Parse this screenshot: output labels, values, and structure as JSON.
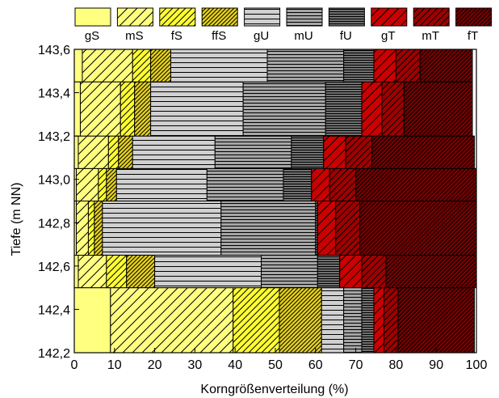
{
  "chart_data": {
    "type": "area",
    "subtype": "stacked-horizontal-step",
    "title": "",
    "xlabel": "Korngrößenverteilung (%)",
    "ylabel": "Tiefe (m NN)",
    "xlim": [
      0,
      100
    ],
    "ylim": [
      142.2,
      143.6
    ],
    "x_ticks": [
      "0",
      "10",
      "20",
      "30",
      "40",
      "50",
      "60",
      "70",
      "80",
      "90",
      "100"
    ],
    "y_ticks": [
      "142,2",
      "142,4",
      "142,6",
      "142,8",
      "143,0",
      "143,2",
      "143,4",
      "143,6"
    ],
    "legend_position": "top",
    "series": [
      {
        "name": "gS",
        "color": "#ffff80",
        "pattern": "none"
      },
      {
        "name": "mS",
        "color": "#ffff80",
        "pattern": "sparse-diagonal"
      },
      {
        "name": "fS",
        "color": "#ffff33",
        "pattern": "diagonal"
      },
      {
        "name": "ffS",
        "color": "#e6d21a",
        "pattern": "dense-diagonal"
      },
      {
        "name": "gU",
        "color": "#d0d0d0",
        "pattern": "sparse-horizontal"
      },
      {
        "name": "mU",
        "color": "#a6a6a6",
        "pattern": "horizontal"
      },
      {
        "name": "fU",
        "color": "#707070",
        "pattern": "dense-horizontal"
      },
      {
        "name": "gT",
        "color": "#cc0000",
        "pattern": "sparse-diagonal"
      },
      {
        "name": "mT",
        "color": "#a00000",
        "pattern": "diagonal"
      },
      {
        "name": "fT",
        "color": "#780000",
        "pattern": "dense-diagonal"
      }
    ],
    "layers": [
      {
        "from": 142.2,
        "to": 142.5,
        "cumulative": [
          9,
          39.5,
          51,
          61.5,
          67,
          71.5,
          74.5,
          77,
          80.5,
          99.5
        ]
      },
      {
        "from": 142.5,
        "to": 142.65,
        "cumulative": [
          1,
          8,
          13,
          20,
          46.5,
          60.5,
          66,
          71.5,
          77.5,
          100
        ]
      },
      {
        "from": 142.65,
        "to": 142.9,
        "cumulative": [
          0.5,
          3.5,
          5,
          7,
          36.5,
          60,
          60.5,
          65,
          71,
          100
        ]
      },
      {
        "from": 142.9,
        "to": 143.05,
        "cumulative": [
          0.5,
          6,
          8,
          10.5,
          33,
          52,
          59,
          63.5,
          70,
          100
        ]
      },
      {
        "from": 143.05,
        "to": 143.2,
        "cumulative": [
          1,
          8.5,
          11,
          14.5,
          35,
          54,
          62,
          67.5,
          74,
          99.5
        ]
      },
      {
        "from": 143.2,
        "to": 143.45,
        "cumulative": [
          1.5,
          11.5,
          15,
          19,
          42,
          62.5,
          71.5,
          76.5,
          82,
          99
        ]
      },
      {
        "from": 143.45,
        "to": 143.62,
        "cumulative": [
          2,
          14.5,
          19,
          24,
          48,
          67,
          74.5,
          80,
          86,
          99
        ]
      }
    ]
  }
}
